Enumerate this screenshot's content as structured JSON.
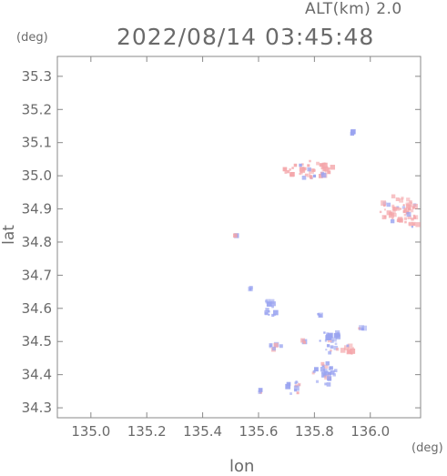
{
  "header": {
    "altitude": "ALT(km) 2.0",
    "timestamp": "2022/08/14 03:45:48"
  },
  "axes": {
    "x_unit": "(deg)",
    "y_unit": "(deg)",
    "x_label": "lon",
    "y_label": "lat",
    "x_range": [
      134.88,
      136.18
    ],
    "y_range": [
      34.27,
      35.36
    ],
    "x_ticks": [
      135.0,
      135.2,
      135.4,
      135.6,
      135.8,
      136.0
    ],
    "x_tick_labels": [
      "135.0",
      "135.2",
      "135.4",
      "135.6",
      "135.8",
      "136.0"
    ],
    "y_ticks": [
      35.3,
      35.2,
      35.1,
      35.0,
      34.9,
      34.8,
      34.7,
      34.6,
      34.5,
      34.4,
      34.3
    ],
    "y_tick_labels": [
      "35.3",
      "35.2",
      "35.1",
      "35.0",
      "34.9",
      "34.8",
      "34.7",
      "34.6",
      "34.5",
      "34.4",
      "34.3"
    ]
  },
  "colors": {
    "approaching": "#9aa4f0",
    "receding": "#f4a6aa",
    "axis": "#888888"
  },
  "echo_regions": [
    {
      "name": "north-cluster",
      "lon": 135.78,
      "lat": 35.02,
      "w": 0.18,
      "h": 0.06,
      "tone": "receding"
    },
    {
      "name": "east-edge-cluster",
      "lon": 136.1,
      "lat": 34.9,
      "w": 0.14,
      "h": 0.08,
      "tone": "receding"
    },
    {
      "name": "east-edge-lower",
      "lon": 136.15,
      "lat": 34.86,
      "w": 0.06,
      "h": 0.04,
      "tone": "receding"
    },
    {
      "name": "small-north-blip",
      "lon": 135.94,
      "lat": 35.13,
      "w": 0.02,
      "h": 0.01,
      "tone": "approaching"
    },
    {
      "name": "mid-speck",
      "lon": 135.52,
      "lat": 34.82,
      "w": 0.01,
      "h": 0.005,
      "tone": "approaching"
    },
    {
      "name": "south-speck-a",
      "lon": 135.57,
      "lat": 34.66,
      "w": 0.01,
      "h": 0.01,
      "tone": "approaching"
    },
    {
      "name": "south-cluster-a",
      "lon": 135.64,
      "lat": 34.6,
      "w": 0.06,
      "h": 0.05,
      "tone": "approaching"
    },
    {
      "name": "south-cluster-b",
      "lon": 135.66,
      "lat": 34.49,
      "w": 0.05,
      "h": 0.03,
      "tone": "approaching"
    },
    {
      "name": "south-cluster-c",
      "lon": 135.86,
      "lat": 34.5,
      "w": 0.08,
      "h": 0.07,
      "tone": "approaching"
    },
    {
      "name": "south-cluster-d",
      "lon": 135.92,
      "lat": 34.47,
      "w": 0.05,
      "h": 0.04,
      "tone": "receding"
    },
    {
      "name": "south-cluster-e",
      "lon": 135.84,
      "lat": 34.4,
      "w": 0.09,
      "h": 0.07,
      "tone": "approaching"
    },
    {
      "name": "south-cluster-f",
      "lon": 135.73,
      "lat": 34.36,
      "w": 0.07,
      "h": 0.04,
      "tone": "approaching"
    },
    {
      "name": "south-speck-b",
      "lon": 135.82,
      "lat": 34.58,
      "w": 0.02,
      "h": 0.01,
      "tone": "approaching"
    },
    {
      "name": "south-speck-c",
      "lon": 135.97,
      "lat": 34.54,
      "w": 0.02,
      "h": 0.01,
      "tone": "approaching"
    },
    {
      "name": "south-speck-d",
      "lon": 135.76,
      "lat": 34.5,
      "w": 0.02,
      "h": 0.01,
      "tone": "receding"
    },
    {
      "name": "south-speck-e",
      "lon": 135.61,
      "lat": 34.35,
      "w": 0.02,
      "h": 0.01,
      "tone": "approaching"
    }
  ]
}
